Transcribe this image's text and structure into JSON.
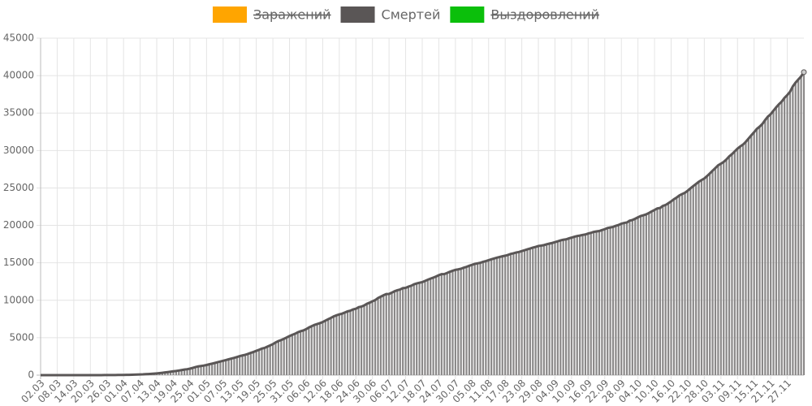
{
  "chart_data": {
    "type": "bar",
    "categories": [
      "02.03",
      null,
      null,
      null,
      null,
      null,
      "08.03",
      null,
      null,
      null,
      null,
      null,
      "14.03",
      null,
      null,
      null,
      null,
      null,
      "20.03",
      null,
      null,
      null,
      null,
      null,
      "26.03",
      null,
      null,
      null,
      null,
      null,
      "01.04",
      null,
      null,
      null,
      null,
      null,
      "07.04",
      null,
      null,
      null,
      null,
      null,
      "13.04",
      null,
      null,
      null,
      null,
      null,
      "19.04",
      null,
      null,
      null,
      null,
      null,
      "25.04",
      null,
      null,
      null,
      null,
      null,
      "01.05",
      null,
      null,
      null,
      null,
      null,
      "07.05",
      null,
      null,
      null,
      null,
      null,
      "13.05",
      null,
      null,
      null,
      null,
      null,
      "19.05",
      null,
      null,
      null,
      null,
      null,
      "25.05",
      null,
      null,
      null,
      null,
      null,
      "31.05",
      null,
      null,
      null,
      null,
      null,
      "06.06",
      null,
      null,
      null,
      null,
      null,
      "12.06",
      null,
      null,
      null,
      null,
      null,
      "18.06",
      null,
      null,
      null,
      null,
      null,
      "24.06",
      null,
      null,
      null,
      null,
      null,
      "30.06",
      null,
      null,
      null,
      null,
      null,
      "06.07",
      null,
      null,
      null,
      null,
      null,
      "12.07",
      null,
      null,
      null,
      null,
      null,
      "18.07",
      null,
      null,
      null,
      null,
      null,
      "24.07",
      null,
      null,
      null,
      null,
      null,
      "30.07",
      null,
      null,
      null,
      null,
      null,
      "05.08",
      null,
      null,
      null,
      null,
      null,
      "11.08",
      null,
      null,
      null,
      null,
      null,
      "17.08",
      null,
      null,
      null,
      null,
      null,
      "23.08",
      null,
      null,
      null,
      null,
      null,
      "29.08",
      null,
      null,
      null,
      null,
      null,
      "04.09",
      null,
      null,
      null,
      null,
      null,
      "10.09",
      null,
      null,
      null,
      null,
      null,
      "16.09",
      null,
      null,
      null,
      null,
      null,
      "22.09",
      null,
      null,
      null,
      null,
      null,
      "28.09",
      null,
      null,
      null,
      null,
      null,
      "04.10",
      null,
      null,
      null,
      null,
      null,
      "10.10",
      null,
      null,
      null,
      null,
      null,
      "16.10",
      null,
      null,
      null,
      null,
      null,
      "22.10",
      null,
      null,
      null,
      null,
      null,
      "28.10",
      null,
      null,
      null,
      null,
      null,
      "03.11",
      null,
      null,
      null,
      null,
      null,
      "09.11",
      null,
      null,
      null,
      null,
      null,
      "15.11",
      null,
      null,
      null,
      null,
      null,
      "21.11",
      null,
      null,
      null,
      null,
      null,
      "27.11",
      null,
      null,
      null,
      null,
      null,
      null
    ],
    "series": [
      {
        "name": "Заражений",
        "color": "#ffa500",
        "hidden": true
      },
      {
        "name": "Смертей",
        "color": "#5a5656",
        "values": [
          0,
          0,
          0,
          0,
          0,
          0,
          0,
          0,
          0,
          0,
          0,
          0,
          0,
          0,
          0,
          0,
          0,
          1,
          1,
          1,
          1,
          3,
          4,
          8,
          9,
          11,
          14,
          17,
          24,
          30,
          34,
          45,
          47,
          58,
          63,
          76,
          94,
          106,
          130,
          148,
          170,
          198,
          232,
          273,
          313,
          361,
          405,
          456,
          513,
          555,
          615,
          681,
          747,
          794,
          867,
          972,
          1073,
          1169,
          1222,
          1280,
          1356,
          1451,
          1537,
          1625,
          1723,
          1827,
          1915,
          2009,
          2116,
          2212,
          2305,
          2418,
          2537,
          2631,
          2722,
          2837,
          2972,
          3099,
          3249,
          3388,
          3541,
          3633,
          3807,
          3968,
          4142,
          4374,
          4555,
          4693,
          4855,
          5037,
          5215,
          5384,
          5528,
          5725,
          5859,
          5971,
          6142,
          6358,
          6532,
          6705,
          6829,
          6948,
          7091,
          7284,
          7468,
          7650,
          7843,
          7992,
          8111,
          8206,
          8359,
          8513,
          8605,
          8781,
          8863,
          9073,
          9152,
          9306,
          9536,
          9683,
          9859,
          10027,
          10296,
          10478,
          10667,
          10826,
          10843,
          11017,
          11205,
          11335,
          11439,
          11614,
          11653,
          11823,
          11937,
          12123,
          12247,
          12342,
          12427,
          12580,
          12745,
          12892,
          13026,
          13172,
          13354,
          13483,
          13504,
          13650,
          13807,
          13941,
          14058,
          14128,
          14207,
          14351,
          14462,
          14606,
          14725,
          14854,
          14931,
          15001,
          15131,
          15231,
          15353,
          15467,
          15585,
          15685,
          15784,
          15872,
          15951,
          16058,
          16189,
          16268,
          16383,
          16448,
          16568,
          16683,
          16804,
          16914,
          17025,
          17128,
          17250,
          17299,
          17365,
          17479,
          17566,
          17649,
          17758,
          17871,
          17993,
          18080,
          18135,
          18263,
          18365,
          18484,
          18579,
          18635,
          18723,
          18785,
          18917,
          19004,
          19128,
          19195,
          19249,
          19379,
          19489,
          19649,
          19720,
          19799,
          19948,
          20056,
          20225,
          20324,
          20385,
          20630,
          20722,
          20891,
          21077,
          21251,
          21358,
          21475,
          21663,
          21865,
          22056,
          22257,
          22330,
          22597,
          22722,
          22966,
          23205,
          23491,
          23723,
          23998,
          24187,
          24366,
          24635,
          24952,
          25242,
          25525,
          25821,
          26050,
          26269,
          26589,
          26935,
          27301,
          27656,
          28026,
          28235,
          28473,
          28804,
          29217,
          29509,
          29887,
          30251,
          30546,
          30793,
          31161,
          31593,
          32032,
          32443,
          32885,
          33186,
          33548,
          34068,
          34525,
          34850,
          35311,
          35778,
          36179,
          36540,
          37031,
          37404,
          37852,
          38558,
          39068,
          39491,
          39895,
          40464
        ]
      },
      {
        "name": "Выздоровлений",
        "color": "#0bbf0b",
        "hidden": true
      }
    ],
    "ylim": [
      0,
      45000
    ],
    "yticks": [
      0,
      5000,
      10000,
      15000,
      20000,
      25000,
      30000,
      35000,
      40000,
      45000
    ],
    "grid": true
  }
}
